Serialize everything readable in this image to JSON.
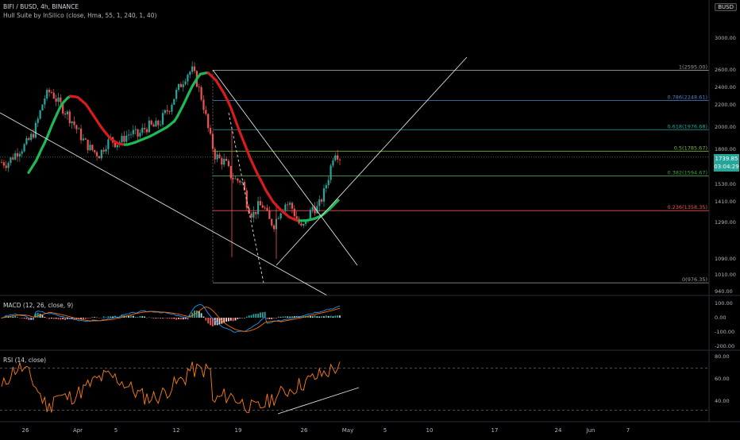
{
  "header": {
    "symbol_line": "BIFI / BUSD, 4h, BINANCE",
    "indicator_line": "Hull Suite by InSilico (close, Hma, 55, 1, 240, 1, 40)",
    "currency": "BUSD"
  },
  "last_price": {
    "price": "1739.85",
    "countdown": "03:04:29"
  },
  "colors": {
    "background": "#000000",
    "up_candle": "#26a69a",
    "down_candle": "#ef5350",
    "hull_up": "#1db954",
    "hull_down": "#d81b1b",
    "macd": "#2196f3",
    "signal": "#ff6d00",
    "rsi": "#ff7f0e",
    "trendline": "#e0e0e0"
  },
  "time_axis": {
    "labels": [
      "26",
      "Apr",
      "5",
      "12",
      "19",
      "26",
      "May",
      "5",
      "10",
      "17",
      "24",
      "Jun",
      "7"
    ]
  },
  "chart_data": [
    {
      "type": "candlestick",
      "title": "BIFI / BUSD, 4h, BINANCE",
      "y_ticks": [
        "3000.00",
        "2600.00",
        "2400.00",
        "2200.00",
        "2000.00",
        "1800.00",
        "1530.00",
        "1410.00",
        "1290.00",
        "1090.00",
        "1010.00",
        "940.00"
      ],
      "fib_levels": [
        {
          "label": "1(2595.00)",
          "color": "#9e9e9e",
          "value": 2595.0
        },
        {
          "label": "0.786(2248.61)",
          "color": "#4f83c3",
          "value": 2248.61
        },
        {
          "label": "0.618(1976.68)",
          "color": "#26a69a",
          "value": 1976.68
        },
        {
          "label": "0.5(1785.67)",
          "color": "#7cb342",
          "value": 1785.67
        },
        {
          "label": "0.382(1594.67)",
          "color": "#43a047",
          "value": 1594.67
        },
        {
          "label": "0.236(1358.35)",
          "color": "#ef5350",
          "value": 1358.35
        },
        {
          "label": "0(976.35)",
          "color": "#9e9e9e",
          "value": 976.35
        }
      ],
      "price_path": [
        1700,
        1690,
        1740,
        1790,
        1820,
        1880,
        1960,
        2120,
        2300,
        2360,
        2260,
        2190,
        2120,
        2050,
        1960,
        1880,
        1820,
        1780,
        1760,
        1840,
        1890,
        1850,
        1880,
        1930,
        1950,
        1920,
        1980,
        2010,
        2000,
        2040,
        2120,
        2200,
        2340,
        2450,
        2560,
        2595,
        2420,
        2200,
        1950,
        1760,
        1720,
        1700,
        1600,
        1560,
        1560,
        1400,
        1330,
        1380,
        1390,
        1300,
        1280,
        1360,
        1400,
        1390,
        1320,
        1250,
        1300,
        1380,
        1370,
        1460,
        1600,
        1800,
        1740
      ],
      "hull_path": [
        1620,
        1720,
        1860,
        2040,
        2200,
        2300,
        2290,
        2210,
        2100,
        1990,
        1900,
        1850,
        1840,
        1860,
        1890,
        1920,
        1960,
        2000,
        2060,
        2200,
        2400,
        2550,
        2570,
        2480,
        2330,
        2140,
        1940,
        1760,
        1620,
        1500,
        1410,
        1360,
        1320,
        1300,
        1300,
        1310,
        1330,
        1370,
        1420
      ]
    },
    {
      "type": "line",
      "title": "MACD (12, 26, close, 9)",
      "y_ticks": [
        "100.00",
        "0.00",
        "-100.00",
        "-200.00"
      ],
      "series": [
        {
          "name": "MACD"
        },
        {
          "name": "Signal"
        },
        {
          "name": "Histogram"
        }
      ]
    },
    {
      "type": "line",
      "title": "RSI (14, close)",
      "y_ticks": [
        "80.00",
        "60.00",
        "40.00"
      ],
      "bands": [
        70,
        30
      ],
      "series": [
        {
          "name": "RSI"
        }
      ]
    }
  ]
}
